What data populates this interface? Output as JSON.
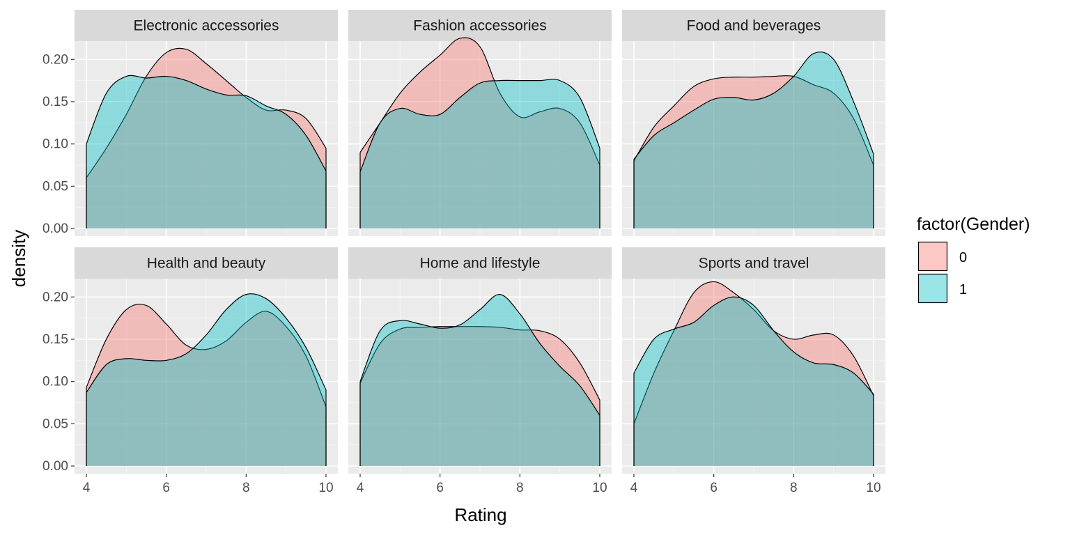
{
  "chart_data": {
    "type": "area",
    "subtype": "density",
    "facet_layout": "2x3",
    "xlabel": "Rating",
    "ylabel": "density",
    "xlim": [
      4,
      10
    ],
    "ylim": [
      0,
      0.22
    ],
    "x_ticks": [
      4,
      6,
      8,
      10
    ],
    "y_ticks": [
      0.0,
      0.05,
      0.1,
      0.15,
      0.2
    ],
    "y_tick_labels": [
      "0.00",
      "0.05",
      "0.10",
      "0.15",
      "0.20"
    ],
    "grid": true,
    "legend": {
      "title": "factor(Gender)",
      "position": "right",
      "entries": [
        {
          "label": "0",
          "color": "#F8766D"
        },
        {
          "label": "1",
          "color": "#00BFC4"
        }
      ]
    },
    "x": [
      4,
      4.5,
      5,
      5.5,
      6,
      6.5,
      7,
      7.5,
      8,
      8.5,
      9,
      9.5,
      10
    ],
    "panels": [
      {
        "title": "Electronic accessories",
        "series": [
          {
            "name": "0",
            "values": [
              0.06,
              0.095,
              0.135,
              0.18,
              0.208,
              0.212,
              0.195,
              0.175,
              0.155,
              0.14,
              0.14,
              0.13,
              0.095
            ]
          },
          {
            "name": "1",
            "values": [
              0.1,
              0.16,
              0.18,
              0.178,
              0.18,
              0.175,
              0.165,
              0.158,
              0.157,
              0.145,
              0.135,
              0.11,
              0.068
            ]
          }
        ]
      },
      {
        "title": "Fashion accessories",
        "series": [
          {
            "name": "0",
            "values": [
              0.09,
              0.125,
              0.16,
              0.185,
              0.205,
              0.225,
              0.215,
              0.16,
              0.132,
              0.138,
              0.142,
              0.125,
              0.075
            ]
          },
          {
            "name": "1",
            "values": [
              0.067,
              0.125,
              0.142,
              0.135,
              0.135,
              0.155,
              0.172,
              0.175,
              0.175,
              0.175,
              0.175,
              0.155,
              0.095
            ]
          }
        ]
      },
      {
        "title": "Food and beverages",
        "series": [
          {
            "name": "0",
            "values": [
              0.08,
              0.12,
              0.145,
              0.168,
              0.177,
              0.179,
              0.179,
              0.18,
              0.18,
              0.17,
              0.16,
              0.13,
              0.075
            ]
          },
          {
            "name": "1",
            "values": [
              0.082,
              0.11,
              0.125,
              0.14,
              0.153,
              0.155,
              0.152,
              0.16,
              0.18,
              0.207,
              0.2,
              0.15,
              0.088
            ]
          }
        ]
      },
      {
        "title": "Health and beauty",
        "series": [
          {
            "name": "0",
            "values": [
              0.093,
              0.15,
              0.185,
              0.19,
              0.168,
              0.143,
              0.138,
              0.148,
              0.17,
              0.183,
              0.165,
              0.13,
              0.07
            ]
          },
          {
            "name": "1",
            "values": [
              0.087,
              0.12,
              0.127,
              0.125,
              0.125,
              0.133,
              0.155,
              0.185,
              0.203,
              0.198,
              0.175,
              0.14,
              0.09
            ]
          }
        ]
      },
      {
        "title": "Home and lifestyle",
        "series": [
          {
            "name": "0",
            "values": [
              0.098,
              0.145,
              0.162,
              0.164,
              0.165,
              0.165,
              0.165,
              0.164,
              0.161,
              0.16,
              0.15,
              0.122,
              0.078
            ]
          },
          {
            "name": "1",
            "values": [
              0.1,
              0.16,
              0.172,
              0.168,
              0.163,
              0.167,
              0.185,
              0.203,
              0.18,
              0.145,
              0.118,
              0.095,
              0.06
            ]
          }
        ]
      },
      {
        "title": "Sports and travel",
        "series": [
          {
            "name": "0",
            "values": [
              0.05,
              0.11,
              0.16,
              0.205,
              0.218,
              0.205,
              0.185,
              0.16,
              0.15,
              0.155,
              0.155,
              0.13,
              0.083
            ]
          },
          {
            "name": "1",
            "values": [
              0.11,
              0.15,
              0.162,
              0.17,
              0.19,
              0.2,
              0.19,
              0.16,
              0.135,
              0.122,
              0.12,
              0.11,
              0.085
            ]
          }
        ]
      }
    ]
  }
}
